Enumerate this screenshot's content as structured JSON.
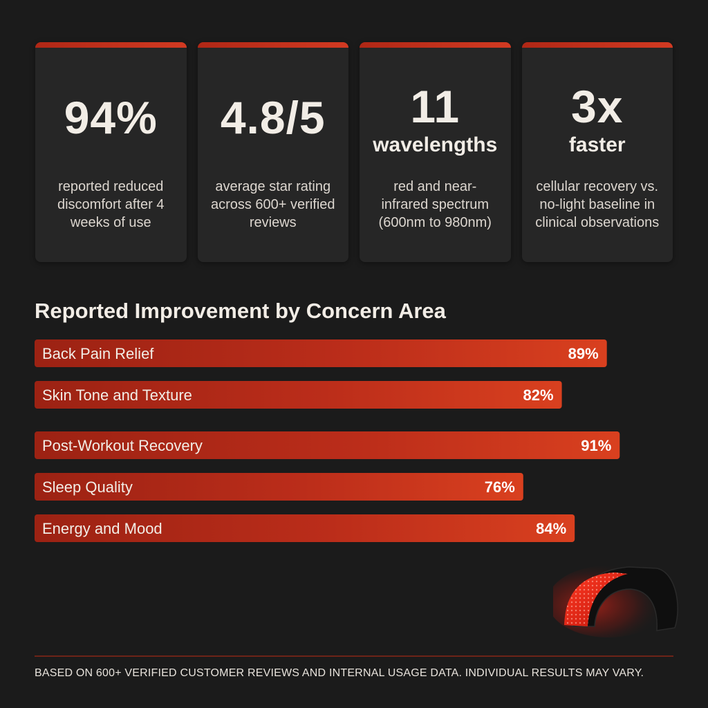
{
  "stats": [
    {
      "value": "94%",
      "unit": "",
      "description": "reported reduced discomfort after 4 weeks of use"
    },
    {
      "value": "4.8/5",
      "unit": "",
      "description": "average star rating across 600+ verified reviews"
    },
    {
      "value": "11",
      "unit": "wavelengths",
      "description": "red and near-infrared spectrum (600nm to 980nm)"
    },
    {
      "value": "3x",
      "unit": "faster",
      "description": "cellular recovery vs. no-light baseline in clinical observations"
    }
  ],
  "chart_data": {
    "type": "bar",
    "orientation": "horizontal",
    "title": "Reported Improvement by Concern Area",
    "categories": [
      "Back Pain Relief",
      "Skin Tone and Texture",
      "Post-Workout Recovery",
      "Sleep Quality",
      "Energy and Mood"
    ],
    "values": [
      89,
      82,
      91,
      76,
      84
    ],
    "value_labels": [
      "89%",
      "82%",
      "91%",
      "76%",
      "84%"
    ],
    "xlim": [
      0,
      100
    ],
    "grid": false,
    "bar_color": "#c0301c"
  },
  "footnote": "BASED ON 600+ VERIFIED CUSTOMER REVIEWS AND INTERNAL USAGE DATA. INDIVIDUAL RESULTS MAY VARY.",
  "colors": {
    "background": "#1b1b1b",
    "card": "#262626",
    "accent": "#c0301c",
    "text": "#f2ede6"
  },
  "icons": {
    "device": "red-light-therapy-device-icon"
  }
}
